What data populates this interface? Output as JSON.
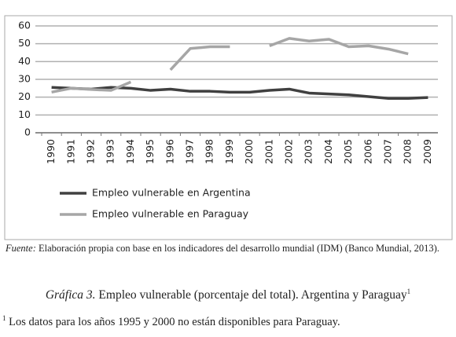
{
  "chart_data": {
    "type": "line",
    "categories": [
      "1990",
      "1991",
      "1992",
      "1993",
      "1994",
      "1995",
      "1996",
      "1997",
      "1998",
      "1999",
      "2000",
      "2001",
      "2002",
      "2003",
      "2004",
      "2005",
      "2006",
      "2007",
      "2008",
      "2009"
    ],
    "series": [
      {
        "name": "Empleo vulnerable en Argentina",
        "color": "#404040",
        "values": [
          25.5,
          25,
          24.5,
          25.5,
          25,
          23.8,
          24.5,
          23.3,
          23.3,
          22.8,
          22.8,
          23.8,
          24.5,
          22.3,
          21.8,
          21.3,
          20.3,
          19.3,
          19.3,
          19.8
        ]
      },
      {
        "name": "Empleo vulnerable en Paraguay",
        "color": "#a6a6a6",
        "values": [
          22.8,
          25,
          24.3,
          23.8,
          28.5,
          null,
          35.3,
          47.3,
          48.3,
          48.3,
          null,
          48.8,
          53,
          51.5,
          52.5,
          48.3,
          48.8,
          47,
          44.3,
          null
        ]
      }
    ],
    "ylim": [
      0,
      60
    ],
    "yticks": [
      0,
      10,
      20,
      30,
      40,
      50,
      60
    ],
    "grid": true
  },
  "source": {
    "label": "Fuente:",
    "text": "Elaboración propia con base en los indicadores del desarrollo mundial (IDM) (Banco Mundial, 2013)."
  },
  "caption": {
    "label": "Gráfica 3.",
    "text": "Empleo vulnerable (porcentaje del total). Argentina y Paraguay",
    "footnote_mark": "1"
  },
  "footnote": {
    "mark": "1",
    "text": "Los datos para los años 1995 y 2000 no están disponibles para Paraguay."
  }
}
